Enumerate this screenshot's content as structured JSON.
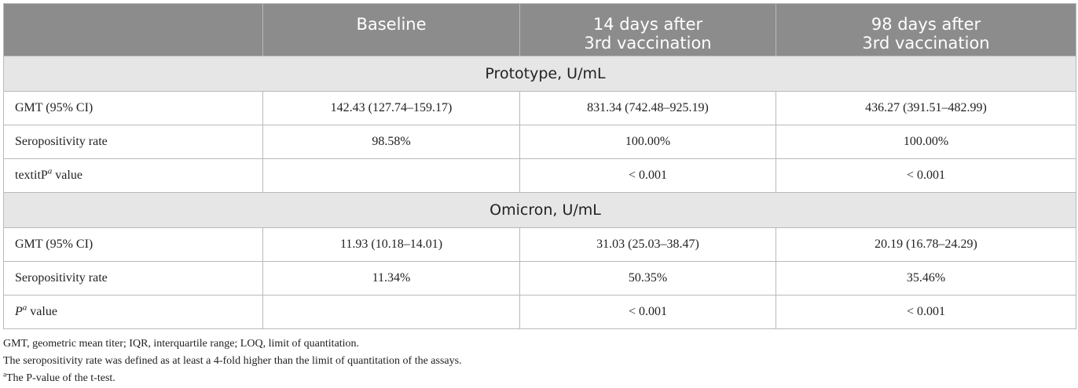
{
  "table": {
    "headers": [
      "",
      "Baseline",
      "14 days after\n3rd vaccination",
      "98 days after\n3rd vaccination"
    ],
    "sections": [
      {
        "title": "Prototype, U/mL",
        "rows": [
          {
            "label": "GMT (95% CI)",
            "cells": [
              "142.43 (127.74–159.17)",
              "831.34 (742.48–925.19)",
              "436.27 (391.51–482.99)"
            ]
          },
          {
            "label": "Seropositivity rate",
            "cells": [
              "98.58%",
              "100.00%",
              "100.00%"
            ]
          },
          {
            "label_main": "textitP",
            "label_sup": "a",
            "label_rest": " value",
            "cells": [
              "",
              "< 0.001",
              "< 0.001"
            ]
          }
        ]
      },
      {
        "title": "Omicron, U/mL",
        "rows": [
          {
            "label": "GMT (95% CI)",
            "cells": [
              "11.93 (10.18–14.01)",
              "31.03 (25.03–38.47)",
              "20.19 (16.78–24.29)"
            ]
          },
          {
            "label": "Seropositivity rate",
            "cells": [
              "11.34%",
              "50.35%",
              "35.46%"
            ]
          },
          {
            "label_main": "P",
            "label_sup": "a",
            "label_rest": " value",
            "cells": [
              "",
              "< 0.001",
              "< 0.001"
            ]
          }
        ]
      }
    ]
  },
  "footnotes": {
    "abbrev": "GMT, geometric mean titer; IQR, interquartile range; LOQ, limit of quantitation.",
    "seropositivity": "The seropositivity rate was defined as at least a 4-fold higher than the limit of quantitation of the assays.",
    "a_marker": "a",
    "a_text": "The P-value of the t-test."
  }
}
